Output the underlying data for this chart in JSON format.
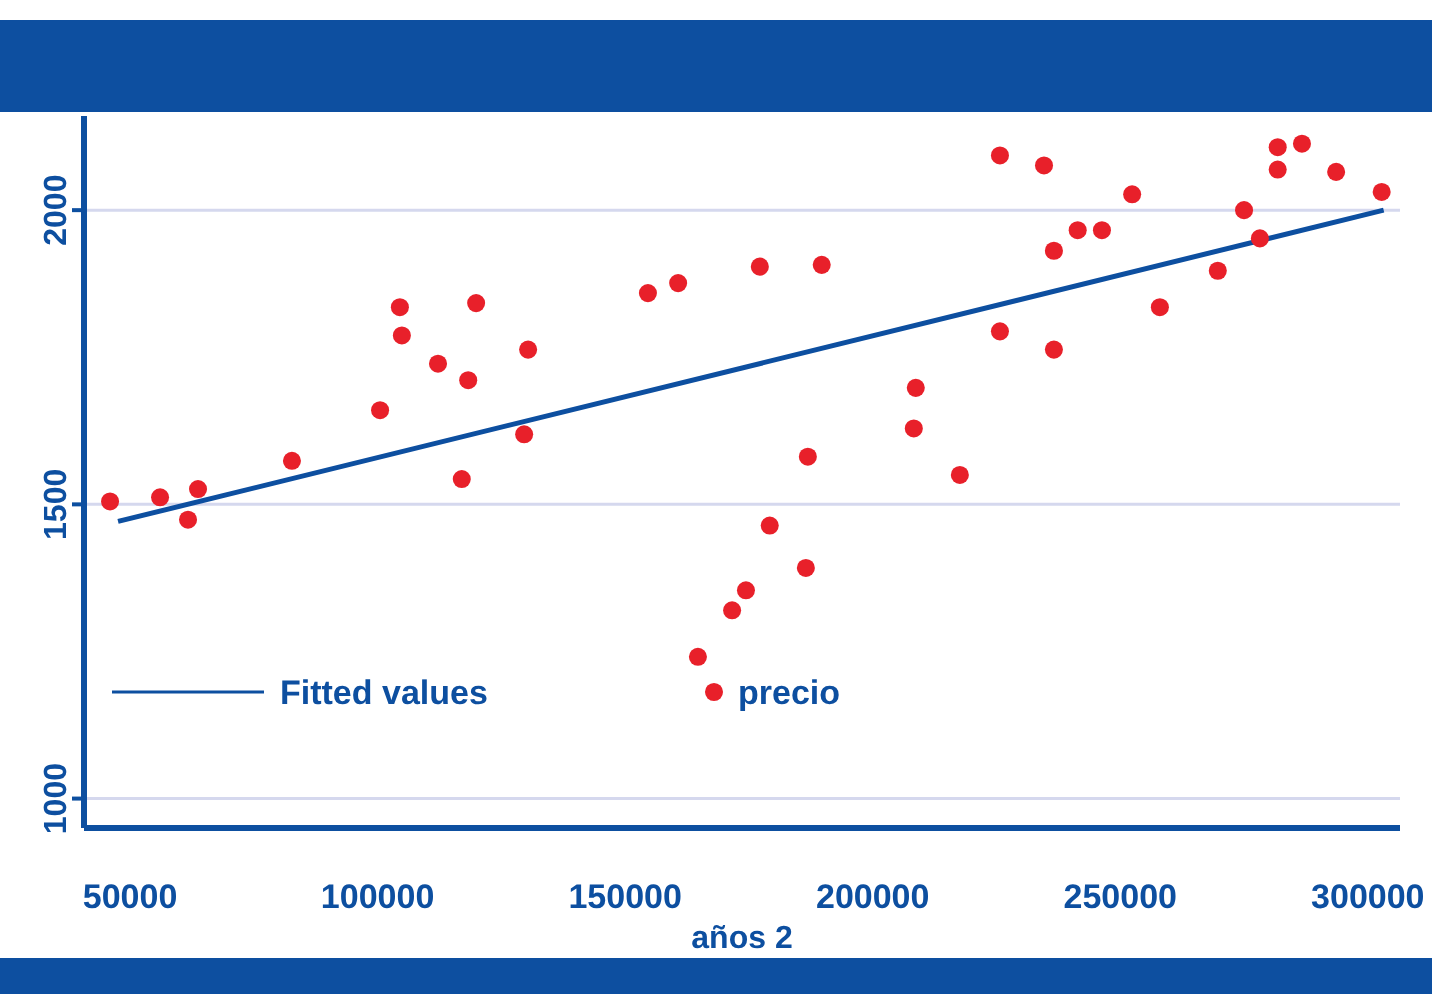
{
  "chart_data": {
    "type": "scatter",
    "xlabel": "años 2",
    "xlim": [
      40700,
      306500
    ],
    "ylim": [
      950,
      2160
    ],
    "xticks": [
      50000,
      100000,
      150000,
      200000,
      250000,
      300000
    ],
    "yticks": [
      1000,
      1500,
      2000
    ],
    "grid": "y",
    "legend": "bottom left",
    "series": [
      {
        "name": "Fitted values",
        "type": "line",
        "color": "#0d4fa0",
        "x": [
          47580,
          303200
        ],
        "values": [
          1471,
          2000
        ]
      },
      {
        "name": "precio",
        "marker": "circle",
        "color": "#e8202a",
        "x": [
          45960,
          56060,
          61710,
          63730,
          82700,
          100500,
          104500,
          104900,
          112200,
          117000,
          118300,
          119900,
          129600,
          130400,
          154600,
          160700,
          164700,
          171600,
          174400,
          177200,
          179200,
          186500,
          186900,
          189700,
          208300,
          208700,
          217600,
          225700,
          225700,
          234600,
          236600,
          236600,
          241400,
          246300,
          252400,
          258000,
          269700,
          275000,
          278200,
          281800,
          281800,
          286700,
          293600,
          302800
        ],
        "values": [
          1505,
          1512,
          1474,
          1526,
          1574,
          1660,
          1835,
          1787,
          1739,
          1543,
          1711,
          1842,
          1619,
          1763,
          1859,
          1876,
          1241,
          1320,
          1354,
          1904,
          1464,
          1392,
          1581,
          1907,
          1629,
          1698,
          1550,
          2093,
          1794,
          2076,
          1931,
          1763,
          1966,
          1966,
          2027,
          1835,
          1897,
          2000,
          1952,
          2107,
          2069,
          2113,
          2065,
          2031
        ]
      }
    ]
  }
}
